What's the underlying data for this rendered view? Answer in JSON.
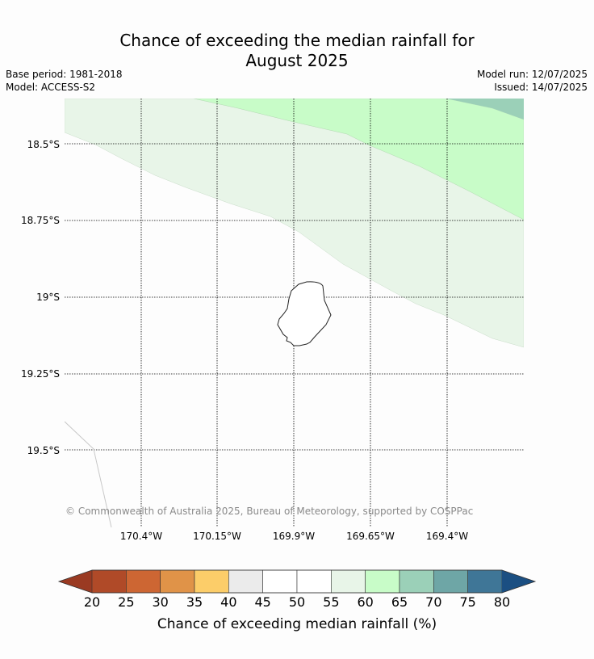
{
  "title": {
    "line1": "Chance of exceeding the median rainfall for",
    "line2": "August 2025"
  },
  "meta": {
    "base_period": "Base period: 1981-2018",
    "model": "Model: ACCESS-S2",
    "model_run": "Model run: 12/07/2025",
    "issued": "Issued: 14/07/2025"
  },
  "map": {
    "latitude_labels": [
      "18.5°S",
      "18.75°S",
      "19°S",
      "19.25°S",
      "19.5°S"
    ],
    "longitude_labels": [
      "170.4°W",
      "170.15°W",
      "169.9°W",
      "169.65°W",
      "169.4°W"
    ],
    "zone_colors": {
      "55-60": "#e8f5e8",
      "60-65": "#c8fcc8",
      "65-70": "#9bd0b8",
      "45-55": "#ffffff"
    },
    "copyright": "© Commonwealth of Australia 2025, Bureau of Meteorology, supported by COSPPac"
  },
  "colorbar": {
    "label": "Chance of exceeding median rainfall (%)",
    "ticks": [
      "20",
      "25",
      "30",
      "35",
      "40",
      "45",
      "50",
      "55",
      "60",
      "65",
      "70",
      "75",
      "80"
    ],
    "low_extend_color": "#9a3a22",
    "high_extend_color": "#1b4f82",
    "segment_colors": [
      "#b04a28",
      "#cd6633",
      "#e09348",
      "#fccd69",
      "#ebebeb",
      "#ffffff",
      "#ffffff",
      "#e8f5e8",
      "#c8fcc8",
      "#9bd0b8",
      "#6ea6a6",
      "#3f7697"
    ]
  }
}
